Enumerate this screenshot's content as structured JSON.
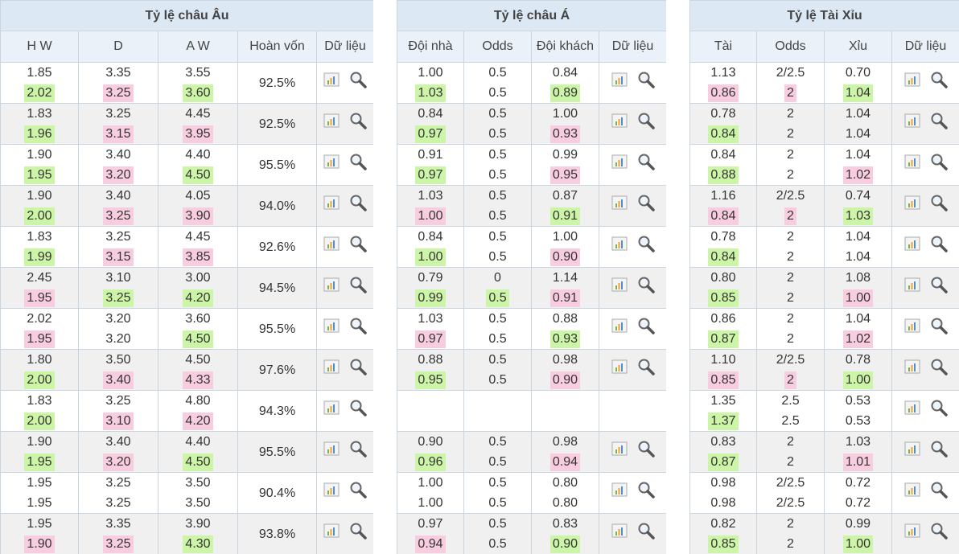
{
  "panels": [
    {
      "title": "Tỷ lệ châu Âu",
      "columns": [
        "H W",
        "D",
        "A W",
        "Hoàn vốn",
        "Dữ liệu"
      ],
      "rows": [
        [
          [
            "1.85",
            "2.02",
            "#cdf5a8"
          ],
          [
            "3.35",
            "3.25",
            "#f9cde0"
          ],
          [
            "3.55",
            "3.60",
            "#cdf5a8"
          ],
          "92.5%"
        ],
        [
          [
            "1.83",
            "1.96",
            "#cdf5a8"
          ],
          [
            "3.25",
            "3.15",
            "#f9cde0"
          ],
          [
            "4.45",
            "3.95",
            "#f9cde0"
          ],
          "92.5%"
        ],
        [
          [
            "1.90",
            "1.95",
            "#cdf5a8"
          ],
          [
            "3.40",
            "3.20",
            "#f9cde0"
          ],
          [
            "4.40",
            "4.50",
            "#cdf5a8"
          ],
          "95.5%"
        ],
        [
          [
            "1.90",
            "2.00",
            "#cdf5a8"
          ],
          [
            "3.40",
            "3.25",
            "#f9cde0"
          ],
          [
            "4.05",
            "3.90",
            "#f9cde0"
          ],
          "94.0%"
        ],
        [
          [
            "1.83",
            "1.99",
            "#cdf5a8"
          ],
          [
            "3.25",
            "3.15",
            "#f9cde0"
          ],
          [
            "4.45",
            "3.85",
            "#f9cde0"
          ],
          "92.6%"
        ],
        [
          [
            "2.45",
            "1.95",
            "#f9cde0"
          ],
          [
            "3.10",
            "3.25",
            "#cdf5a8"
          ],
          [
            "3.00",
            "4.20",
            "#cdf5a8"
          ],
          "94.5%"
        ],
        [
          [
            "2.02",
            "1.95",
            "#f9cde0"
          ],
          [
            "3.20",
            "3.20",
            null
          ],
          [
            "3.60",
            "4.50",
            "#cdf5a8"
          ],
          "95.5%"
        ],
        [
          [
            "1.80",
            "2.00",
            "#cdf5a8"
          ],
          [
            "3.50",
            "3.40",
            "#f9cde0"
          ],
          [
            "4.50",
            "4.33",
            "#f9cde0"
          ],
          "97.6%"
        ],
        [
          [
            "1.83",
            "2.00",
            "#cdf5a8"
          ],
          [
            "3.25",
            "3.10",
            "#f9cde0"
          ],
          [
            "4.80",
            "4.20",
            "#f9cde0"
          ],
          "94.3%"
        ],
        [
          [
            "1.90",
            "1.95",
            "#cdf5a8"
          ],
          [
            "3.40",
            "3.20",
            "#f9cde0"
          ],
          [
            "4.40",
            "4.50",
            "#cdf5a8"
          ],
          "95.5%"
        ],
        [
          [
            "1.95",
            "1.95",
            null
          ],
          [
            "3.25",
            "3.25",
            null
          ],
          [
            "3.50",
            "3.50",
            null
          ],
          "90.4%"
        ],
        [
          [
            "1.95",
            "1.90",
            "#f9cde0"
          ],
          [
            "3.35",
            "3.25",
            "#f9cde0"
          ],
          [
            "3.90",
            "4.30",
            "#cdf5a8"
          ],
          "93.8%"
        ]
      ]
    },
    {
      "title": "Tỷ lệ châu Á",
      "columns": [
        "Đội nhà",
        "Odds",
        "Đội khách",
        "Dữ liệu"
      ],
      "rows": [
        [
          [
            "1.00",
            "1.03",
            "#cdf5a8"
          ],
          [
            "0.5",
            "0.5",
            null
          ],
          [
            "0.84",
            "0.89",
            "#cdf5a8"
          ]
        ],
        [
          [
            "0.84",
            "0.97",
            "#cdf5a8"
          ],
          [
            "0.5",
            "0.5",
            null
          ],
          [
            "1.00",
            "0.93",
            "#f9cde0"
          ]
        ],
        [
          [
            "0.91",
            "0.97",
            "#cdf5a8"
          ],
          [
            "0.5",
            "0.5",
            null
          ],
          [
            "0.99",
            "0.95",
            "#f9cde0"
          ]
        ],
        [
          [
            "1.03",
            "1.00",
            "#f9cde0"
          ],
          [
            "0.5",
            "0.5",
            null
          ],
          [
            "0.87",
            "0.91",
            "#cdf5a8"
          ]
        ],
        [
          [
            "0.84",
            "1.00",
            "#cdf5a8"
          ],
          [
            "0.5",
            "0.5",
            null
          ],
          [
            "1.00",
            "0.90",
            "#f9cde0"
          ]
        ],
        [
          [
            "0.79",
            "0.99",
            "#cdf5a8"
          ],
          [
            "0",
            "0.5",
            "#cdf5a8"
          ],
          [
            "1.14",
            "0.91",
            "#f9cde0"
          ]
        ],
        [
          [
            "1.03",
            "0.97",
            "#f9cde0"
          ],
          [
            "0.5",
            "0.5",
            null
          ],
          [
            "0.88",
            "0.93",
            "#cdf5a8"
          ]
        ],
        [
          [
            "0.88",
            "0.95",
            "#cdf5a8"
          ],
          [
            "0.5",
            "0.5",
            null
          ],
          [
            "0.98",
            "0.90",
            "#f9cde0"
          ]
        ],
        null,
        [
          [
            "0.90",
            "0.96",
            "#cdf5a8"
          ],
          [
            "0.5",
            "0.5",
            null
          ],
          [
            "0.98",
            "0.94",
            "#f9cde0"
          ]
        ],
        [
          [
            "1.00",
            "1.00",
            null
          ],
          [
            "0.5",
            "0.5",
            null
          ],
          [
            "0.80",
            "0.80",
            null
          ]
        ],
        [
          [
            "0.97",
            "0.94",
            "#f9cde0"
          ],
          [
            "0.5",
            "0.5",
            null
          ],
          [
            "0.83",
            "0.90",
            "#cdf5a8"
          ]
        ]
      ]
    },
    {
      "title": "Tỷ lệ Tài Xỉu",
      "columns": [
        "Tài",
        "Odds",
        "Xỉu",
        "Dữ liệu"
      ],
      "rows": [
        [
          [
            "1.13",
            "0.86",
            "#f9cde0"
          ],
          [
            "2/2.5",
            "2",
            "#f9cde0"
          ],
          [
            "0.70",
            "1.04",
            "#cdf5a8"
          ]
        ],
        [
          [
            "0.78",
            "0.84",
            "#cdf5a8"
          ],
          [
            "2",
            "2",
            null
          ],
          [
            "1.04",
            "1.04",
            null
          ]
        ],
        [
          [
            "0.84",
            "0.88",
            "#cdf5a8"
          ],
          [
            "2",
            "2",
            null
          ],
          [
            "1.04",
            "1.02",
            "#f9cde0"
          ]
        ],
        [
          [
            "1.16",
            "0.84",
            "#f9cde0"
          ],
          [
            "2/2.5",
            "2",
            "#f9cde0"
          ],
          [
            "0.74",
            "1.03",
            "#cdf5a8"
          ]
        ],
        [
          [
            "0.78",
            "0.84",
            "#cdf5a8"
          ],
          [
            "2",
            "2",
            null
          ],
          [
            "1.04",
            "1.04",
            null
          ]
        ],
        [
          [
            "0.80",
            "0.85",
            "#cdf5a8"
          ],
          [
            "2",
            "2",
            null
          ],
          [
            "1.08",
            "1.00",
            "#f9cde0"
          ]
        ],
        [
          [
            "0.86",
            "0.87",
            "#cdf5a8"
          ],
          [
            "2",
            "2",
            null
          ],
          [
            "1.04",
            "1.02",
            "#f9cde0"
          ]
        ],
        [
          [
            "1.10",
            "0.85",
            "#f9cde0"
          ],
          [
            "2/2.5",
            "2",
            "#f9cde0"
          ],
          [
            "0.78",
            "1.00",
            "#cdf5a8"
          ]
        ],
        [
          [
            "1.35",
            "1.37",
            "#cdf5a8"
          ],
          [
            "2.5",
            "2.5",
            null
          ],
          [
            "0.53",
            "0.53",
            null
          ]
        ],
        [
          [
            "0.83",
            "0.87",
            "#cdf5a8"
          ],
          [
            "2",
            "2",
            null
          ],
          [
            "1.03",
            "1.01",
            "#f9cde0"
          ]
        ],
        [
          [
            "0.98",
            "0.98",
            null
          ],
          [
            "2/2.5",
            "2/2.5",
            null
          ],
          [
            "0.72",
            "0.72",
            null
          ]
        ],
        [
          [
            "0.82",
            "0.85",
            "#cdf5a8"
          ],
          [
            "2",
            "2",
            null
          ],
          [
            "0.99",
            "1.00",
            "#cdf5a8"
          ]
        ]
      ]
    }
  ]
}
